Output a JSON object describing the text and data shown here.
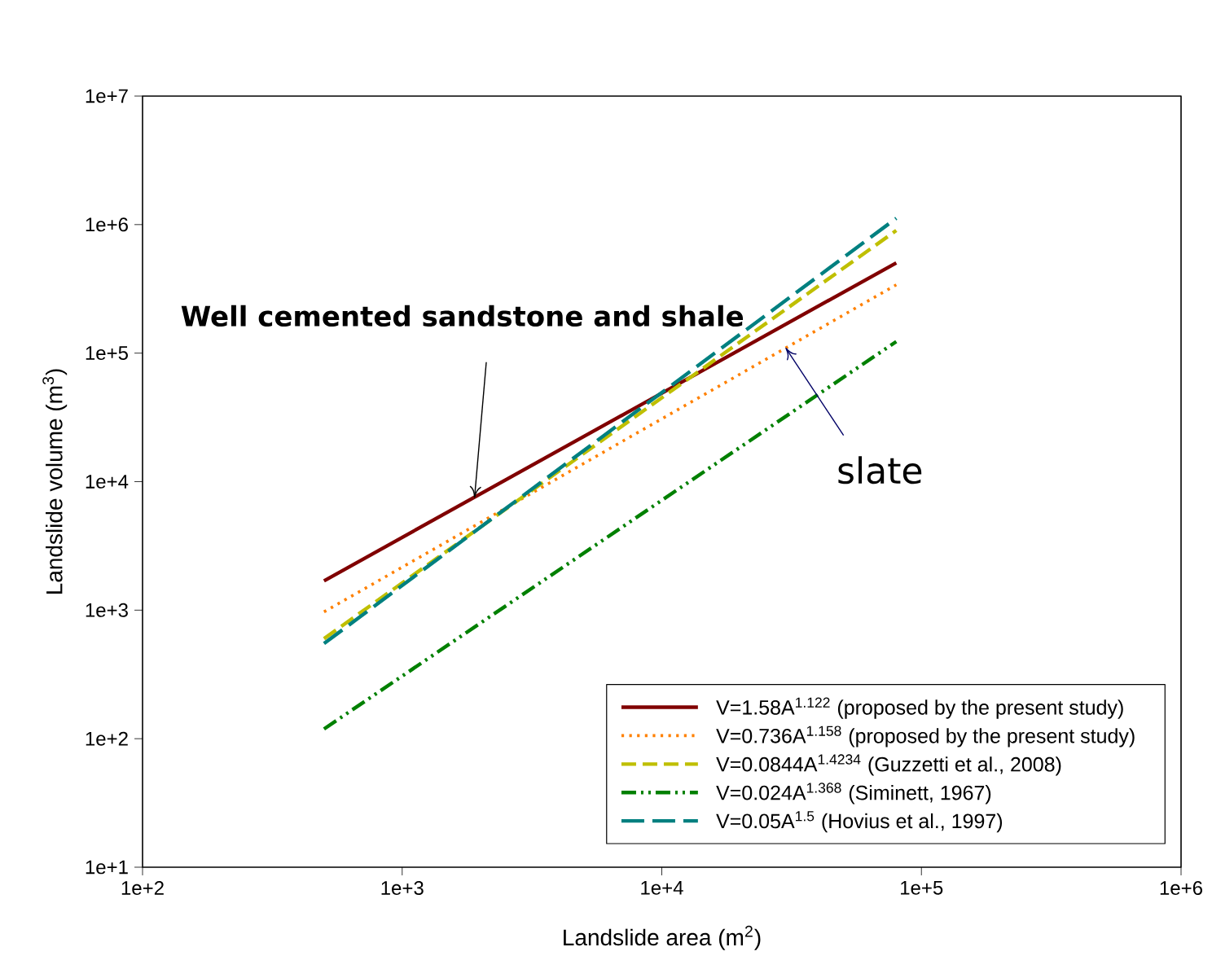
{
  "chart_data": {
    "type": "line",
    "xlabel": "Landslide area (m$^{2}$)",
    "ylabel": "Landslide volume (m$^{3}$)",
    "log": "xy",
    "grid": false,
    "legend": "bottom right",
    "xlim": [
      100,
      1000000
    ],
    "ylim": [
      10,
      10000000
    ],
    "xticks": [
      {
        "value": 100,
        "label": "1e+2"
      },
      {
        "value": 1000,
        "label": "1e+3"
      },
      {
        "value": 10000,
        "label": "1e+4"
      },
      {
        "value": 100000,
        "label": "1e+5"
      },
      {
        "value": 1000000,
        "label": "1e+6"
      }
    ],
    "yticks": [
      {
        "value": 10,
        "label": "1e+1"
      },
      {
        "value": 100,
        "label": "1e+2"
      },
      {
        "value": 1000,
        "label": "1e+3"
      },
      {
        "value": 10000,
        "label": "1e+4"
      },
      {
        "value": 100000,
        "label": "1e+5"
      },
      {
        "value": 1000000,
        "label": "1e+6"
      },
      {
        "value": 10000000,
        "label": "1e+7"
      }
    ],
    "x": [
      500,
      80000
    ],
    "series": [
      {
        "name": "V=1.58A$^{1.122}$ (proposed by the present study)",
        "color": "#800000",
        "line_style": "solid",
        "values": [
          1690,
          504000
        ]
      },
      {
        "name": "V=0.736A$^{1.158}$ (proposed by the present study)",
        "color": "#ff8000",
        "line_style": "dotted",
        "values": [
          970,
          340000
        ]
      },
      {
        "name": "V=0.0844A$^{1.4234}$ (Guzzetti et al., 2008)",
        "color": "#bfbf00",
        "line_style": "dashed",
        "values": [
          600,
          900000
        ]
      },
      {
        "name": "V=0.024A$^{1.368}$ (Siminett, 1967)",
        "color": "#008000",
        "line_style": "dashdotdotted",
        "values": [
          119,
          123000
        ]
      },
      {
        "name": "V=0.05A$^{1.5}$ (Hovius et al., 1997)",
        "color": "#008080",
        "line_style": "longdashed",
        "values": [
          550,
          1120000
        ]
      }
    ],
    "annotations": [
      {
        "text": "Well cemented sandstone and shale",
        "x": 1900,
        "y": 7500
      },
      {
        "text": "slate",
        "x": 30000,
        "y": 110000
      }
    ]
  }
}
